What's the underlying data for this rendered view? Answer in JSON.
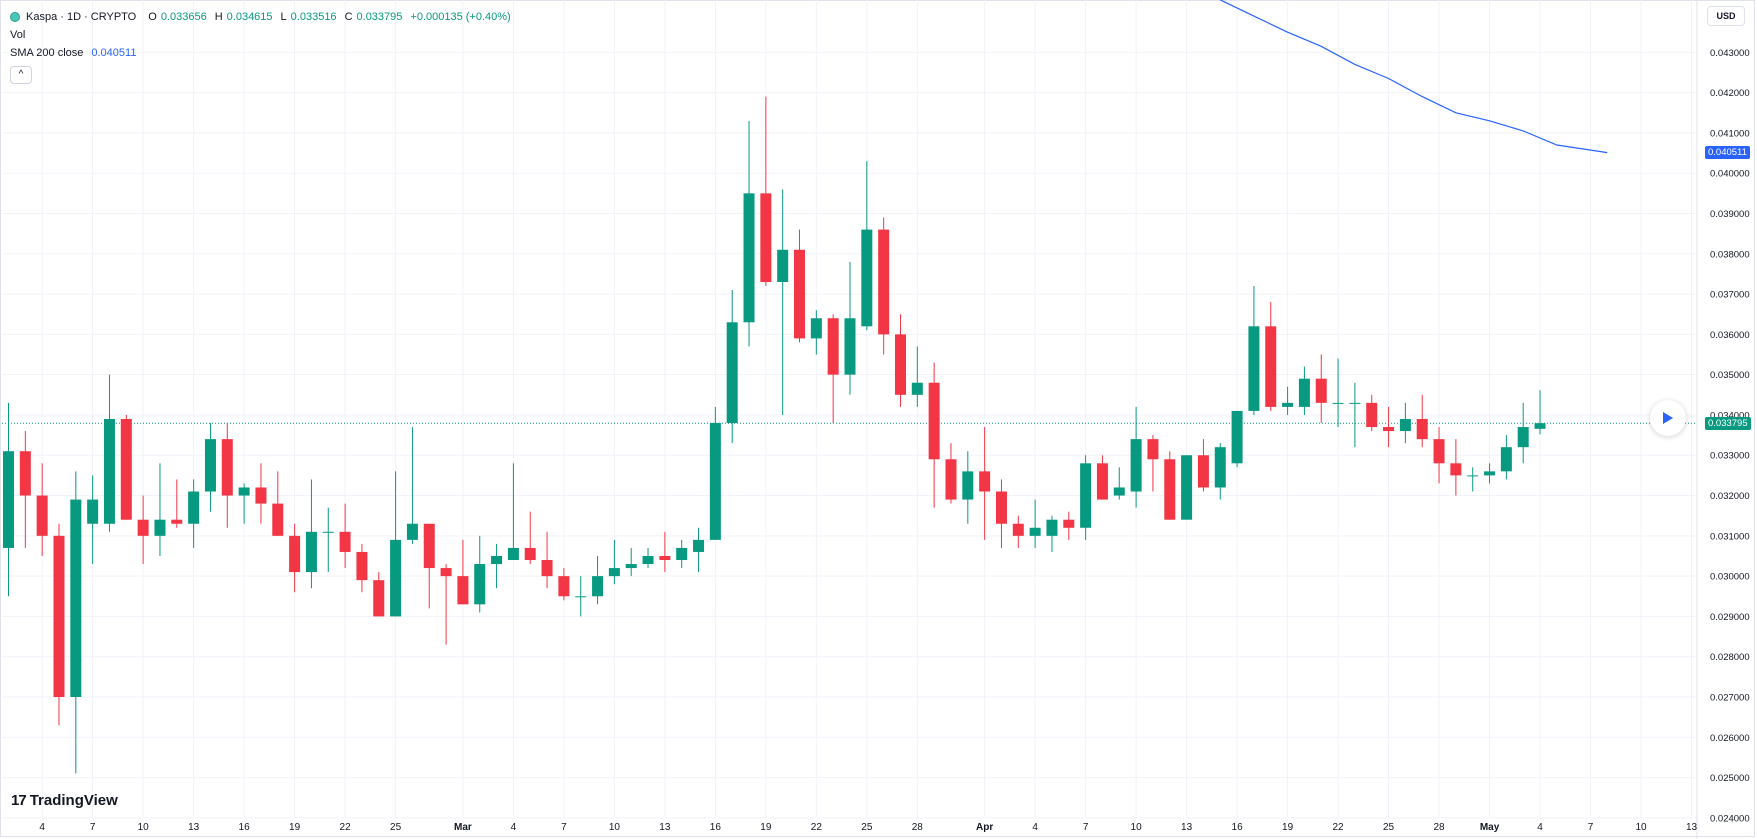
{
  "header": {
    "symbol": "Kaspa · 1D · CRYPTO",
    "open_label": "O",
    "open": "0.033656",
    "high_label": "H",
    "high": "0.034615",
    "low_label": "L",
    "low": "0.033516",
    "close_label": "C",
    "close": "0.033795",
    "change": "+0.000135 (+0.40%)",
    "vol_label": "Vol",
    "sma_label": "SMA 200 close",
    "sma_value": "0.040511",
    "collapse_glyph": "^"
  },
  "currency": "USD",
  "price_tags": {
    "last": "0.033795",
    "sma": "0.040511"
  },
  "branding": {
    "logo_text": "TradingView",
    "logo_mark": "17"
  },
  "icons": {
    "play": "play-icon",
    "collapse": "chevron-up-icon",
    "symbol": "kaspa-logo-icon"
  },
  "colors": {
    "up": "#089981",
    "down": "#f23645",
    "sma": "#2962ff",
    "grid": "#f0f3fa"
  },
  "chart_data": {
    "type": "candlestick",
    "y_ticks": [
      "0.043000",
      "0.042000",
      "0.041000",
      "0.040000",
      "0.039000",
      "0.038000",
      "0.037000",
      "0.036000",
      "0.035000",
      "0.034000",
      "0.033000",
      "0.032000",
      "0.031000",
      "0.030000",
      "0.029000",
      "0.028000",
      "0.027000",
      "0.026000",
      "0.025000",
      "0.024000"
    ],
    "y_tick_values": [
      0.043,
      0.042,
      0.041,
      0.04,
      0.039,
      0.038,
      0.037,
      0.036,
      0.035,
      0.034,
      0.033,
      0.032,
      0.031,
      0.03,
      0.029,
      0.028,
      0.027,
      0.026,
      0.025,
      0.024
    ],
    "ylim": [
      0.0236,
      0.0441
    ],
    "x_tick_labels": [
      "4",
      "7",
      "10",
      "13",
      "16",
      "19",
      "22",
      "25",
      "Mar",
      "4",
      "7",
      "10",
      "13",
      "16",
      "19",
      "22",
      "25",
      "28",
      "Apr",
      "4",
      "7",
      "10",
      "13",
      "16",
      "19",
      "22",
      "25",
      "28",
      "May",
      "4",
      "7",
      "10",
      "13"
    ],
    "x_tick_index": [
      2,
      5,
      8,
      11,
      14,
      17,
      20,
      23,
      27,
      30,
      33,
      36,
      39,
      42,
      45,
      48,
      51,
      54,
      58,
      61,
      64,
      67,
      70,
      73,
      76,
      79,
      82,
      85,
      88,
      91,
      94,
      97,
      100
    ],
    "candles": [
      {
        "o": 0.0307,
        "h": 0.0343,
        "l": 0.0295,
        "c": 0.0331
      },
      {
        "o": 0.0331,
        "h": 0.0336,
        "l": 0.0307,
        "c": 0.032
      },
      {
        "o": 0.032,
        "h": 0.0328,
        "l": 0.0305,
        "c": 0.031
      },
      {
        "o": 0.031,
        "h": 0.0313,
        "l": 0.0263,
        "c": 0.027
      },
      {
        "o": 0.027,
        "h": 0.0326,
        "l": 0.0251,
        "c": 0.0319
      },
      {
        "o": 0.0313,
        "h": 0.0325,
        "l": 0.0303,
        "c": 0.0319
      },
      {
        "o": 0.0313,
        "h": 0.035,
        "l": 0.0311,
        "c": 0.0339
      },
      {
        "o": 0.0339,
        "h": 0.034,
        "l": 0.0314,
        "c": 0.0314
      },
      {
        "o": 0.0314,
        "h": 0.032,
        "l": 0.0303,
        "c": 0.031
      },
      {
        "o": 0.031,
        "h": 0.0328,
        "l": 0.0305,
        "c": 0.0314
      },
      {
        "o": 0.0314,
        "h": 0.0324,
        "l": 0.0312,
        "c": 0.0313
      },
      {
        "o": 0.0313,
        "h": 0.0324,
        "l": 0.0307,
        "c": 0.0321
      },
      {
        "o": 0.0321,
        "h": 0.0338,
        "l": 0.0316,
        "c": 0.0334
      },
      {
        "o": 0.0334,
        "h": 0.0338,
        "l": 0.0312,
        "c": 0.032
      },
      {
        "o": 0.032,
        "h": 0.0323,
        "l": 0.0313,
        "c": 0.0322
      },
      {
        "o": 0.0322,
        "h": 0.0328,
        "l": 0.0313,
        "c": 0.0318
      },
      {
        "o": 0.0318,
        "h": 0.0326,
        "l": 0.031,
        "c": 0.031
      },
      {
        "o": 0.031,
        "h": 0.0313,
        "l": 0.0296,
        "c": 0.0301
      },
      {
        "o": 0.0301,
        "h": 0.0324,
        "l": 0.0297,
        "c": 0.0311
      },
      {
        "o": 0.0311,
        "h": 0.0317,
        "l": 0.0301,
        "c": 0.0311
      },
      {
        "o": 0.0311,
        "h": 0.0318,
        "l": 0.0302,
        "c": 0.0306
      },
      {
        "o": 0.0306,
        "h": 0.0308,
        "l": 0.0296,
        "c": 0.0299
      },
      {
        "o": 0.0299,
        "h": 0.0301,
        "l": 0.029,
        "c": 0.029
      },
      {
        "o": 0.029,
        "h": 0.0326,
        "l": 0.029,
        "c": 0.0309
      },
      {
        "o": 0.0309,
        "h": 0.0337,
        "l": 0.0308,
        "c": 0.0313
      },
      {
        "o": 0.0313,
        "h": 0.0313,
        "l": 0.0292,
        "c": 0.0302
      },
      {
        "o": 0.0302,
        "h": 0.0303,
        "l": 0.0283,
        "c": 0.03
      },
      {
        "o": 0.03,
        "h": 0.0309,
        "l": 0.0293,
        "c": 0.0293
      },
      {
        "o": 0.0293,
        "h": 0.031,
        "l": 0.0291,
        "c": 0.0303
      },
      {
        "o": 0.0303,
        "h": 0.0308,
        "l": 0.0297,
        "c": 0.0305
      },
      {
        "o": 0.0304,
        "h": 0.0328,
        "l": 0.0304,
        "c": 0.0307
      },
      {
        "o": 0.0307,
        "h": 0.0316,
        "l": 0.0303,
        "c": 0.0304
      },
      {
        "o": 0.0304,
        "h": 0.0311,
        "l": 0.0297,
        "c": 0.03
      },
      {
        "o": 0.03,
        "h": 0.0302,
        "l": 0.0294,
        "c": 0.0295
      },
      {
        "o": 0.0295,
        "h": 0.03,
        "l": 0.029,
        "c": 0.0295
      },
      {
        "o": 0.0295,
        "h": 0.0305,
        "l": 0.0293,
        "c": 0.03
      },
      {
        "o": 0.03,
        "h": 0.0309,
        "l": 0.0298,
        "c": 0.0302
      },
      {
        "o": 0.0302,
        "h": 0.0307,
        "l": 0.03,
        "c": 0.0303
      },
      {
        "o": 0.0303,
        "h": 0.0307,
        "l": 0.0302,
        "c": 0.0305
      },
      {
        "o": 0.0305,
        "h": 0.0311,
        "l": 0.0301,
        "c": 0.0304
      },
      {
        "o": 0.0304,
        "h": 0.0309,
        "l": 0.0302,
        "c": 0.0307
      },
      {
        "o": 0.0306,
        "h": 0.0312,
        "l": 0.0301,
        "c": 0.0309
      },
      {
        "o": 0.0309,
        "h": 0.0342,
        "l": 0.0309,
        "c": 0.0338
      },
      {
        "o": 0.0338,
        "h": 0.0371,
        "l": 0.0333,
        "c": 0.0363
      },
      {
        "o": 0.0363,
        "h": 0.0413,
        "l": 0.0357,
        "c": 0.0395
      },
      {
        "o": 0.0395,
        "h": 0.0419,
        "l": 0.0372,
        "c": 0.0373
      },
      {
        "o": 0.0373,
        "h": 0.0396,
        "l": 0.034,
        "c": 0.0381
      },
      {
        "o": 0.0381,
        "h": 0.0386,
        "l": 0.0358,
        "c": 0.0359
      },
      {
        "o": 0.0359,
        "h": 0.0366,
        "l": 0.0355,
        "c": 0.0364
      },
      {
        "o": 0.0364,
        "h": 0.0365,
        "l": 0.0338,
        "c": 0.035
      },
      {
        "o": 0.035,
        "h": 0.0378,
        "l": 0.0345,
        "c": 0.0364
      },
      {
        "o": 0.0362,
        "h": 0.0403,
        "l": 0.0361,
        "c": 0.0386
      },
      {
        "o": 0.0386,
        "h": 0.0389,
        "l": 0.0355,
        "c": 0.036
      },
      {
        "o": 0.036,
        "h": 0.0365,
        "l": 0.0342,
        "c": 0.0345
      },
      {
        "o": 0.0345,
        "h": 0.0357,
        "l": 0.0342,
        "c": 0.0348
      },
      {
        "o": 0.0348,
        "h": 0.0353,
        "l": 0.0317,
        "c": 0.0329
      },
      {
        "o": 0.0329,
        "h": 0.0333,
        "l": 0.0318,
        "c": 0.0319
      },
      {
        "o": 0.0319,
        "h": 0.0331,
        "l": 0.0313,
        "c": 0.0326
      },
      {
        "o": 0.0326,
        "h": 0.0337,
        "l": 0.0309,
        "c": 0.0321
      },
      {
        "o": 0.0321,
        "h": 0.0324,
        "l": 0.0307,
        "c": 0.0313
      },
      {
        "o": 0.0313,
        "h": 0.0315,
        "l": 0.0307,
        "c": 0.031
      },
      {
        "o": 0.031,
        "h": 0.0319,
        "l": 0.0307,
        "c": 0.0312
      },
      {
        "o": 0.031,
        "h": 0.0315,
        "l": 0.0306,
        "c": 0.0314
      },
      {
        "o": 0.0314,
        "h": 0.0316,
        "l": 0.0309,
        "c": 0.0312
      },
      {
        "o": 0.0312,
        "h": 0.033,
        "l": 0.0309,
        "c": 0.0328
      },
      {
        "o": 0.0328,
        "h": 0.033,
        "l": 0.0319,
        "c": 0.0319
      },
      {
        "o": 0.032,
        "h": 0.0327,
        "l": 0.0319,
        "c": 0.0322
      },
      {
        "o": 0.0321,
        "h": 0.0342,
        "l": 0.0317,
        "c": 0.0334
      },
      {
        "o": 0.0334,
        "h": 0.0335,
        "l": 0.0321,
        "c": 0.0329
      },
      {
        "o": 0.0329,
        "h": 0.0331,
        "l": 0.0314,
        "c": 0.0314
      },
      {
        "o": 0.0314,
        "h": 0.033,
        "l": 0.0314,
        "c": 0.033
      },
      {
        "o": 0.033,
        "h": 0.0334,
        "l": 0.0321,
        "c": 0.0322
      },
      {
        "o": 0.0322,
        "h": 0.0333,
        "l": 0.0319,
        "c": 0.0332
      },
      {
        "o": 0.0328,
        "h": 0.0341,
        "l": 0.0327,
        "c": 0.0341
      },
      {
        "o": 0.0341,
        "h": 0.0372,
        "l": 0.034,
        "c": 0.0362
      },
      {
        "o": 0.0362,
        "h": 0.0368,
        "l": 0.0341,
        "c": 0.0342
      },
      {
        "o": 0.0342,
        "h": 0.0347,
        "l": 0.034,
        "c": 0.0343
      },
      {
        "o": 0.0342,
        "h": 0.0352,
        "l": 0.034,
        "c": 0.0349
      },
      {
        "o": 0.0349,
        "h": 0.0355,
        "l": 0.0338,
        "c": 0.0343
      },
      {
        "o": 0.0343,
        "h": 0.0354,
        "l": 0.0337,
        "c": 0.0343
      },
      {
        "o": 0.0343,
        "h": 0.0348,
        "l": 0.0332,
        "c": 0.0343
      },
      {
        "o": 0.0343,
        "h": 0.0345,
        "l": 0.0336,
        "c": 0.0337
      },
      {
        "o": 0.0337,
        "h": 0.0342,
        "l": 0.0332,
        "c": 0.0336
      },
      {
        "o": 0.0336,
        "h": 0.0343,
        "l": 0.0333,
        "c": 0.0339
      },
      {
        "o": 0.0339,
        "h": 0.0345,
        "l": 0.0332,
        "c": 0.0334
      },
      {
        "o": 0.0334,
        "h": 0.0337,
        "l": 0.0323,
        "c": 0.0328
      },
      {
        "o": 0.0328,
        "h": 0.0334,
        "l": 0.032,
        "c": 0.0325
      },
      {
        "o": 0.0325,
        "h": 0.0327,
        "l": 0.0321,
        "c": 0.0325
      },
      {
        "o": 0.0325,
        "h": 0.0328,
        "l": 0.0323,
        "c": 0.0326
      },
      {
        "o": 0.0326,
        "h": 0.0335,
        "l": 0.0324,
        "c": 0.0332
      },
      {
        "o": 0.0332,
        "h": 0.0343,
        "l": 0.0328,
        "c": 0.0337
      },
      {
        "o": 0.033656,
        "h": 0.034615,
        "l": 0.033516,
        "c": 0.033795
      }
    ],
    "sma": {
      "name": "SMA 200 close",
      "points": [
        [
          72,
          0.0443
        ],
        [
          74,
          0.0439
        ],
        [
          76,
          0.0435
        ],
        [
          78,
          0.04315
        ],
        [
          80,
          0.0427
        ],
        [
          82,
          0.04235
        ],
        [
          84,
          0.0419
        ],
        [
          86,
          0.0415
        ],
        [
          88,
          0.0413
        ],
        [
          90,
          0.04105
        ],
        [
          92,
          0.0407
        ],
        [
          95,
          0.040511
        ]
      ]
    },
    "last_price": 0.033795
  }
}
